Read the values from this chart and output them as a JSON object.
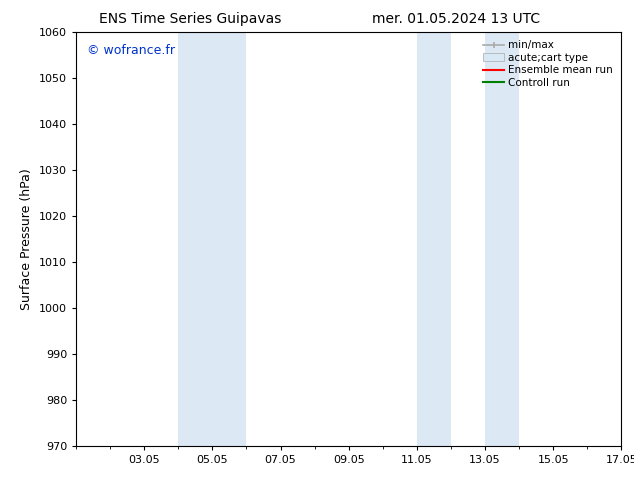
{
  "title_left": "ENS Time Series Guipavas",
  "title_right": "mer. 01.05.2024 13 UTC",
  "ylabel": "Surface Pressure (hPa)",
  "ylim": [
    970,
    1060
  ],
  "yticks": [
    970,
    980,
    990,
    1000,
    1010,
    1020,
    1030,
    1040,
    1050,
    1060
  ],
  "xlim": [
    0,
    16
  ],
  "xtick_labels": [
    "03.05",
    "05.05",
    "07.05",
    "09.05",
    "11.05",
    "13.05",
    "15.05",
    "17.05"
  ],
  "xtick_positions": [
    2,
    4,
    6,
    8,
    10,
    12,
    14,
    16
  ],
  "watermark": "© wofrance.fr",
  "watermark_color": "#0033cc",
  "bg_color": "#ffffff",
  "plot_bg_color": "#ffffff",
  "shaded_bands": [
    {
      "x_start": 3.0,
      "x_end": 4.0
    },
    {
      "x_start": 4.0,
      "x_end": 5.0
    },
    {
      "x_start": 10.0,
      "x_end": 11.0
    },
    {
      "x_start": 12.0,
      "x_end": 13.0
    }
  ],
  "shaded_color": "#dce9f5",
  "legend_entries": [
    {
      "label": "min/max",
      "color": "#aaaaaa",
      "style": "line_with_caps"
    },
    {
      "label": "acute;cart type",
      "color": "#cccccc",
      "style": "filled_bar"
    },
    {
      "label": "Ensemble mean run",
      "color": "#ff0000",
      "style": "line"
    },
    {
      "label": "Controll run",
      "color": "#008000",
      "style": "line"
    }
  ],
  "font_size_title": 10,
  "font_size_axis": 9,
  "font_size_tick": 8,
  "font_size_watermark": 9,
  "font_size_legend": 7.5
}
